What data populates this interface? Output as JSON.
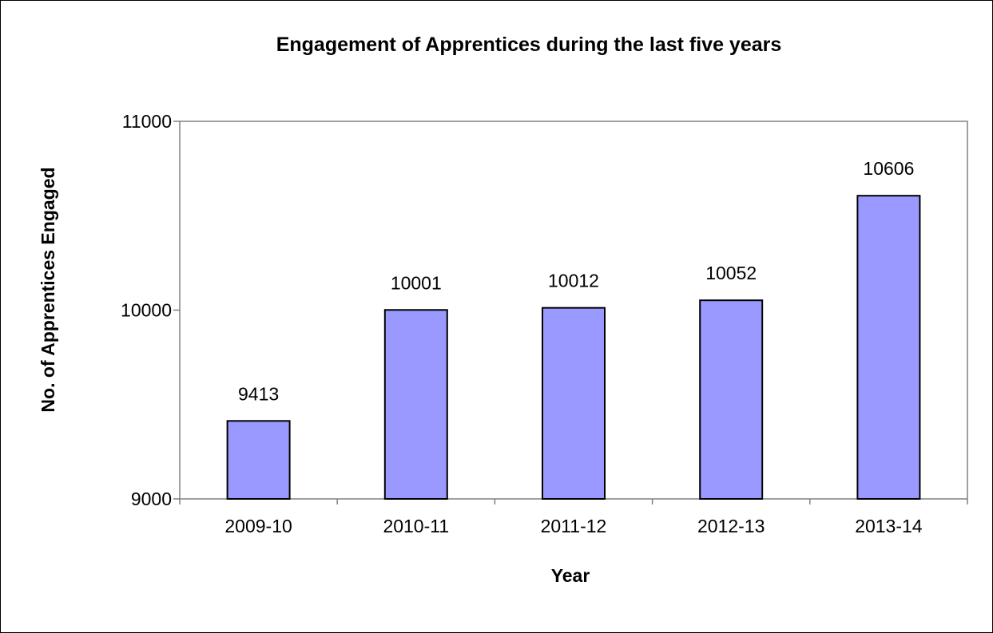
{
  "chart_data": {
    "type": "bar",
    "title": "Engagement of Apprentices during the last five years",
    "xlabel": "Year",
    "ylabel": "No. of Apprentices Engaged",
    "categories": [
      "2009-10",
      "2010-11",
      "2011-12",
      "2012-13",
      "2013-14"
    ],
    "values": [
      9413,
      10001,
      10012,
      10052,
      10606
    ],
    "data_labels": [
      "9413",
      "10001",
      "10012",
      "10052",
      "10606"
    ],
    "ylim": [
      9000,
      11000
    ],
    "yticks": [
      9000,
      10000,
      11000
    ],
    "ytick_labels": [
      "9000",
      "10000",
      "11000"
    ],
    "grid": false,
    "legend": "none",
    "bar_color": "#9999ff",
    "bar_outline_color": "#000000"
  }
}
